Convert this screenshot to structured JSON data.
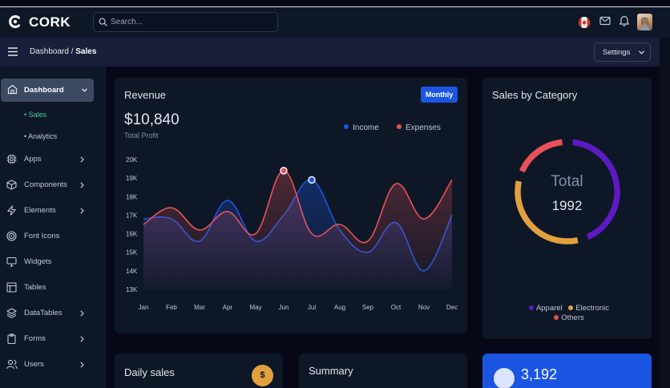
{
  "brand": {
    "name": "CORK",
    "icon": "cork-logo-icon",
    "accent": "#2196f3"
  },
  "search": {
    "placeholder": "Search..."
  },
  "header": {
    "icons": [
      "canada-flag-icon",
      "mail-icon",
      "bell-icon",
      "user-avatar"
    ]
  },
  "breadcrumb": {
    "parent": "Dashboard",
    "separator": "/",
    "current": "Sales"
  },
  "settings": {
    "label": "Settings"
  },
  "sidebar": {
    "active": {
      "label": "Dashboard",
      "icon": "home-icon"
    },
    "sub_items": [
      {
        "label": "Sales",
        "active": true
      },
      {
        "label": "Analytics",
        "active": false
      }
    ],
    "items": [
      {
        "label": "Apps",
        "icon": "cpu-icon"
      },
      {
        "label": "Components",
        "icon": "box-icon"
      },
      {
        "label": "Elements",
        "icon": "zap-icon"
      },
      {
        "label": "Font Icons",
        "icon": "target-icon"
      },
      {
        "label": "Widgets",
        "icon": "monitor-icon"
      },
      {
        "label": "Tables",
        "icon": "layout-icon"
      },
      {
        "label": "DataTables",
        "icon": "layers-icon"
      },
      {
        "label": "Forms",
        "icon": "clipboard-icon"
      },
      {
        "label": "Users",
        "icon": "users-icon"
      }
    ]
  },
  "revenue": {
    "title": "Revenue",
    "period_button": "Monthly",
    "total": "$10,840",
    "total_label": "Total Profit",
    "legend": {
      "income": "Income",
      "expenses": "Expenses"
    }
  },
  "chart_data": {
    "type": "area",
    "categories": [
      "Jan",
      "Feb",
      "Mar",
      "Apr",
      "May",
      "Jun",
      "Jul",
      "Aug",
      "Sep",
      "Oct",
      "Nov",
      "Dec"
    ],
    "ylim": [
      13000,
      20000
    ],
    "y_ticks": [
      "20K",
      "19K",
      "18K",
      "17K",
      "16K",
      "15K",
      "14K",
      "13K"
    ],
    "series": [
      {
        "name": "Income",
        "color": "#1b55e2",
        "values": [
          16800,
          16800,
          15600,
          17800,
          15600,
          17000,
          18900,
          16200,
          15000,
          16600,
          14000,
          17000
        ]
      },
      {
        "name": "Expenses",
        "color": "#e7515a",
        "values": [
          16500,
          17400,
          16200,
          17200,
          16000,
          19400,
          16000,
          16500,
          15600,
          18700,
          16800,
          18900
        ]
      }
    ],
    "markers": [
      {
        "series": "Expenses",
        "category": "Jun",
        "value": 19400
      },
      {
        "series": "Income",
        "category": "Jul",
        "value": 18900
      }
    ]
  },
  "category": {
    "title": "Sales by Category",
    "center_label": "Total",
    "center_value": "1992",
    "donut": [
      {
        "name": "Apparel",
        "color": "#5c1ac3",
        "share": 0.45
      },
      {
        "name": "Electronic",
        "color": "#e2a03f",
        "share": 0.35
      },
      {
        "name": "Others",
        "color": "#e7515a",
        "share": 0.2
      }
    ]
  },
  "bottom": {
    "daily_title": "Daily sales",
    "daily_icon": "$",
    "summary_title": "Summary",
    "blue_value": "3,192"
  }
}
